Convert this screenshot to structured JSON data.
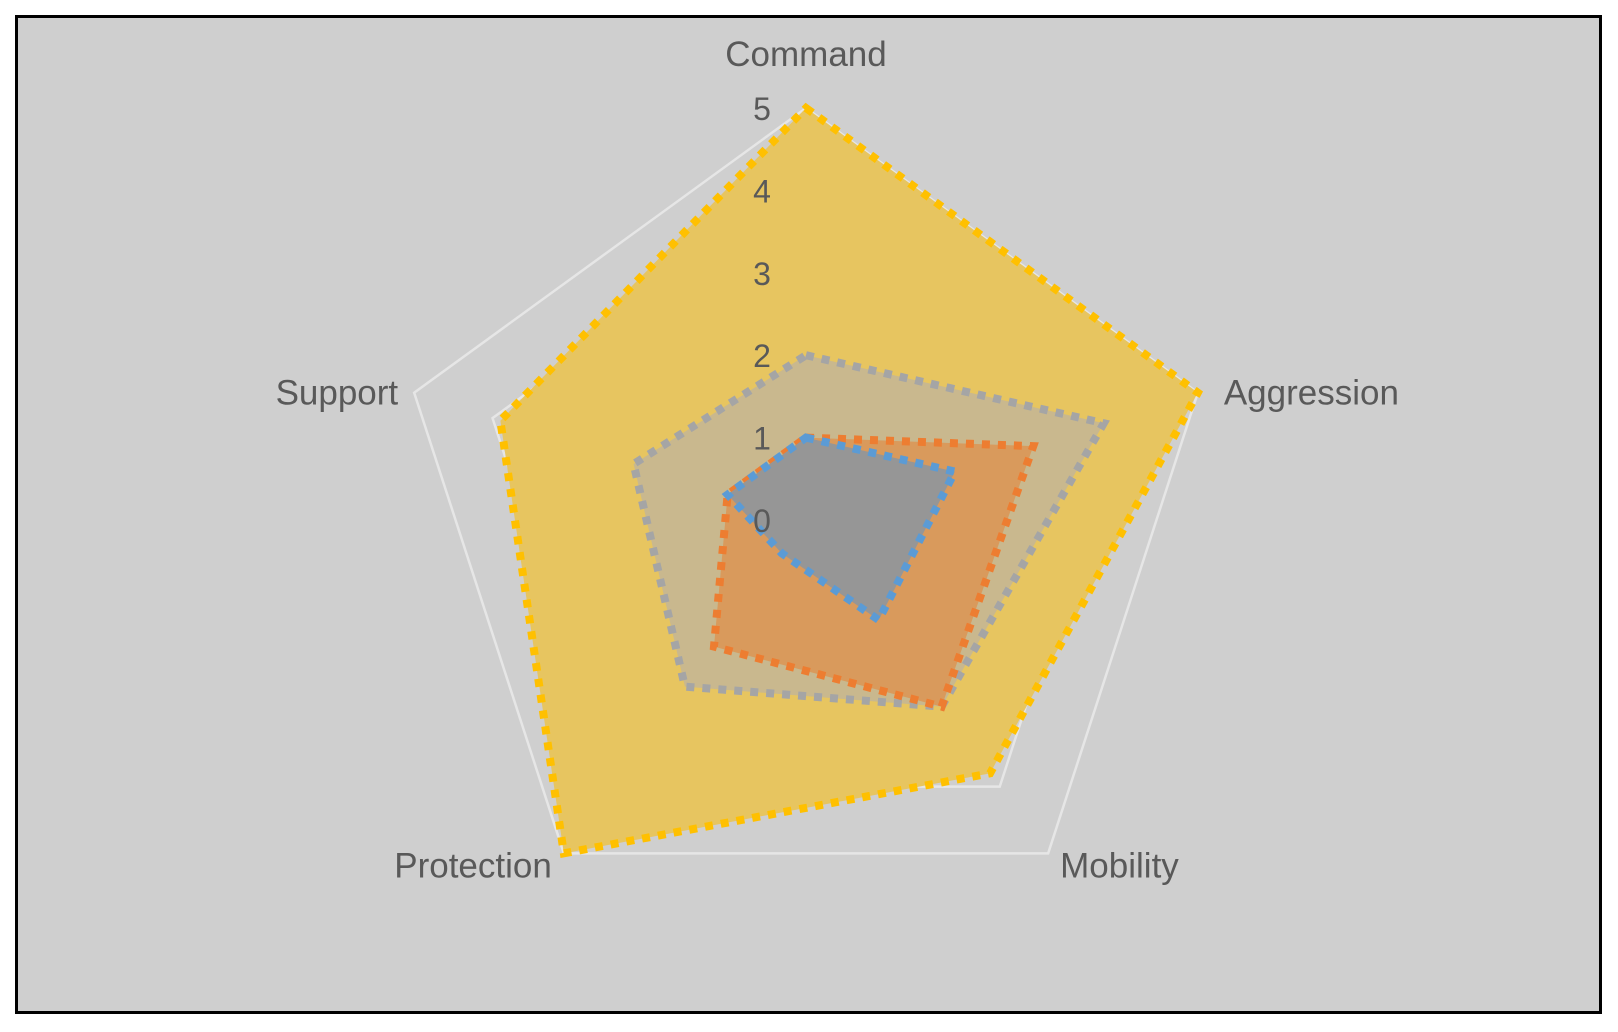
{
  "chart_data": {
    "type": "radar",
    "axes": [
      "Command",
      "Aggression",
      "Mobility",
      "Protection",
      "Support"
    ],
    "r_ticks": [
      "0",
      "1",
      "2",
      "3",
      "4",
      "5"
    ],
    "r_range": [
      0,
      5
    ],
    "gridlines": true,
    "legend": "none",
    "series": [
      {
        "values": [
          5,
          5,
          3.8,
          5,
          3.9
        ],
        "color": "#FFC000",
        "fill": "#E7C560"
      },
      {
        "values": [
          2,
          3.8,
          2.8,
          2.5,
          2.2
        ],
        "color": "#A5A5A5",
        "fill": "#C9B88E"
      },
      {
        "values": [
          1,
          2.9,
          2.8,
          1.9,
          1
        ],
        "color": "#ED7D31",
        "fill": "#D99A5C"
      },
      {
        "values": [
          1,
          1.9,
          1.5,
          0.5,
          1
        ],
        "color": "#5B9BD5",
        "fill": "#969696"
      }
    ],
    "grid_color": "#E6E6E6",
    "background": "#CFCFCF"
  }
}
